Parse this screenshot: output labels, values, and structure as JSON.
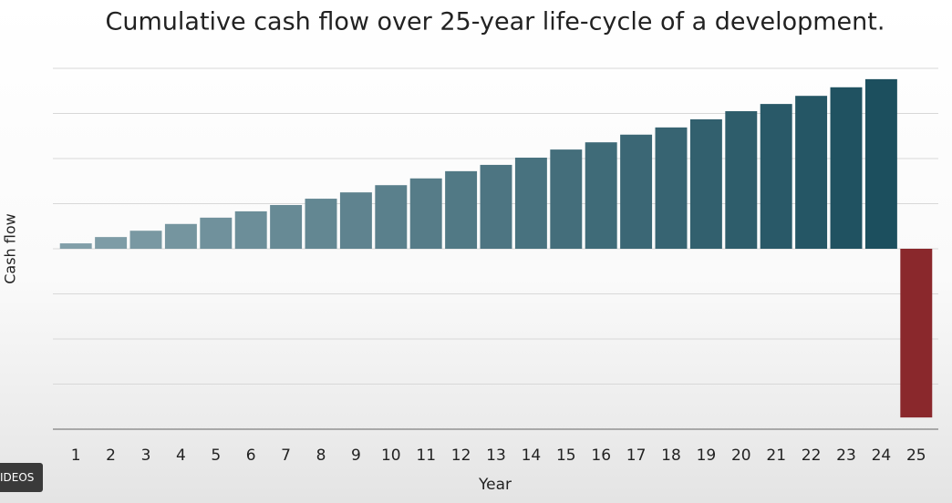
{
  "chart_data": {
    "type": "bar",
    "title": "Cumulative cash flow over 25-year life-cycle of a development.",
    "x_label": "Year",
    "y_label": "Cash flow",
    "categories": [
      "1",
      "2",
      "3",
      "4",
      "5",
      "6",
      "7",
      "8",
      "9",
      "10",
      "11",
      "12",
      "13",
      "14",
      "15",
      "16",
      "17",
      "18",
      "19",
      "20",
      "21",
      "22",
      "23",
      "24",
      "25"
    ],
    "values": [
      0.12,
      0.26,
      0.4,
      0.55,
      0.69,
      0.83,
      0.97,
      1.11,
      1.25,
      1.41,
      1.56,
      1.72,
      1.86,
      2.02,
      2.2,
      2.36,
      2.53,
      2.69,
      2.87,
      3.05,
      3.21,
      3.39,
      3.58,
      3.76,
      -3.74
    ],
    "bar_gradient": [
      "#829fa9",
      "#1c4f5e"
    ],
    "negative_color": "#8a282c",
    "ylim": [
      -4,
      4
    ],
    "yticks": [
      -4,
      -3,
      -2,
      -1,
      0,
      1,
      2,
      3,
      4
    ],
    "grid": true
  },
  "ui": {
    "button": "IDEOS"
  }
}
